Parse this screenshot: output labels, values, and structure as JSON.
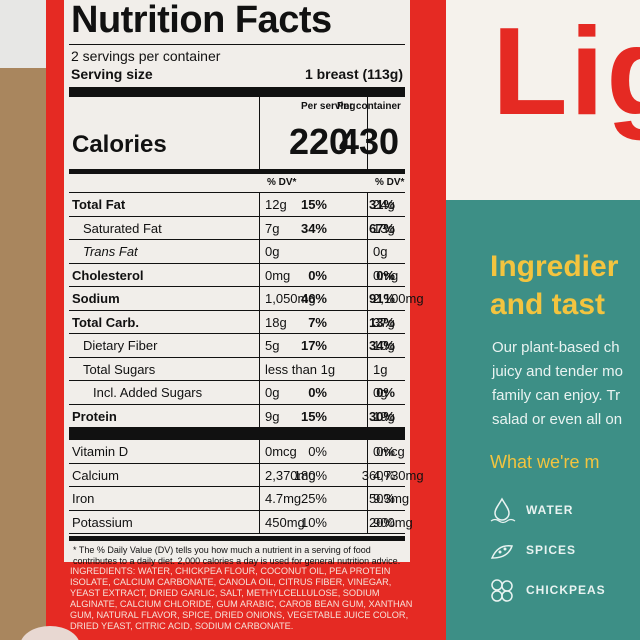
{
  "label": {
    "title": "Nutrition Facts",
    "servings": "2 servings per container",
    "serving_size_label": "Serving size",
    "serving_size_value": "1 breast (113g)",
    "col_per_serving": "Per serving",
    "col_per_container": "Per container",
    "calories_label": "Calories",
    "calories_serving": "220",
    "calories_container": "430",
    "dv_head": "% DV*",
    "rows": [
      {
        "name": "Total Fat",
        "a": "12g",
        "ad": "15%",
        "b": "24g",
        "bd": "31%"
      },
      {
        "name": "Saturated Fat",
        "a": "7g",
        "ad": "34%",
        "b": "13g",
        "bd": "67%"
      },
      {
        "name": "Trans Fat",
        "a": "0g",
        "ad": "",
        "b": "0g",
        "bd": ""
      },
      {
        "name": "Cholesterol",
        "a": "0mg",
        "ad": "0%",
        "b": "0mg",
        "bd": "0%"
      },
      {
        "name": "Sodium",
        "a": "1,050mg",
        "ad": "46%",
        "b": "2,100mg",
        "bd": "91%"
      },
      {
        "name": "Total Carb.",
        "a": "18g",
        "ad": "7%",
        "b": "37g",
        "bd": "13%"
      },
      {
        "name": "Dietary Fiber",
        "a": "5g",
        "ad": "17%",
        "b": "10g",
        "bd": "34%"
      },
      {
        "name": "Total Sugars",
        "a": "less than 1g",
        "ad": "",
        "b": "1g",
        "bd": ""
      },
      {
        "name": "Incl. Added Sugars",
        "a": "0g",
        "ad": "0%",
        "b": "0g",
        "bd": "0%"
      },
      {
        "name": "Protein",
        "a": "9g",
        "ad": "15%",
        "b": "19g",
        "bd": "30%"
      }
    ],
    "vitamins": [
      {
        "name": "Vitamin D",
        "a": "0mcg",
        "ad": "0%",
        "b": "0mcg",
        "bd": "0%"
      },
      {
        "name": "Calcium",
        "a": "2,370mg",
        "ad": "180%",
        "b": "4,730mg",
        "bd": "360%"
      },
      {
        "name": "Iron",
        "a": "4.7mg",
        "ad": "25%",
        "b": "9.3mg",
        "bd": "50%"
      },
      {
        "name": "Potassium",
        "a": "450mg",
        "ad": "10%",
        "b": "900mg",
        "bd": "20%"
      }
    ],
    "footnote": "* The % Daily Value (DV) tells you how much a nutrient in a serving of food contributes to a daily diet. 2,000 calories a day is used for general nutrition advice."
  },
  "ingredients": "INGREDIENTS: WATER, CHICKPEA FLOUR, COCONUT OIL, PEA PROTEIN ISOLATE, CALCIUM CARBONATE, CANOLA OIL, CITRUS FIBER, VINEGAR, YEAST EXTRACT, DRIED GARLIC, SALT, METHYLCELLULOSE, SODIUM ALGINATE, CALCIUM CHLORIDE, GUM ARABIC, CAROB BEAN GUM, XANTHAN GUM, NATURAL FLAVOR, SPICE, DRIED ONIONS, VEGETABLE JUICE COLOR, DRIED YEAST, CITRIC ACID, SODIUM CARBONATE.",
  "brand": {
    "logo_text": "Ligh"
  },
  "promo": {
    "title_line1": "Ingredier",
    "title_line2": "and tast",
    "body_line1": "Our plant-based ch",
    "body_line2": "juicy and tender mo",
    "body_line3": "family can enjoy. Tr",
    "body_line4": "salad or even all on",
    "subtitle": "What we're m",
    "items": [
      {
        "label": "WATER",
        "icon": "water-drop-icon"
      },
      {
        "label": "SPICES",
        "icon": "spices-icon"
      },
      {
        "label": "CHICKPEAS",
        "icon": "chickpeas-icon"
      }
    ]
  },
  "colors": {
    "panel_red": "#e52a23",
    "teal": "#3d8f86",
    "accent_yellow": "#f3c43f"
  }
}
